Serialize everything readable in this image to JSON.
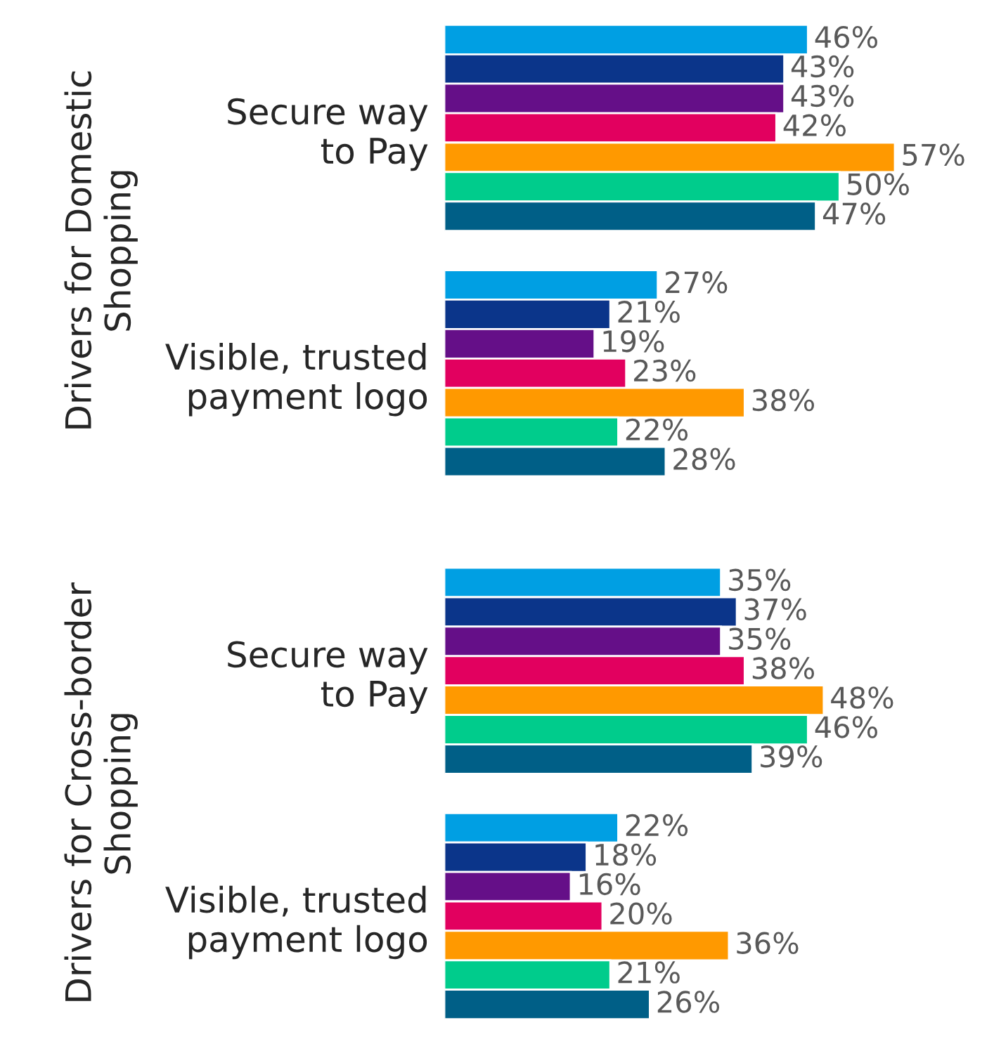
{
  "chart_data": [
    {
      "type": "bar",
      "orientation": "horizontal",
      "ylabel": "Drivers for Domestic\nShopping",
      "categories": [
        "Secure way\nto Pay",
        "Visible, trusted\npayment logo"
      ],
      "tick_labels": "y",
      "grid": false,
      "legend": false,
      "series": [
        {
          "color": "#009fe3",
          "values": [
            46,
            27
          ],
          "value_labels": [
            "46%",
            "27%"
          ]
        },
        {
          "color": "#0b358a",
          "values": [
            43,
            21
          ],
          "value_labels": [
            "43%",
            "21%"
          ]
        },
        {
          "color": "#650f88",
          "values": [
            43,
            19
          ],
          "value_labels": [
            "43%",
            "19%"
          ]
        },
        {
          "color": "#e2005f",
          "values": [
            42,
            23
          ],
          "value_labels": [
            "42%",
            "23%"
          ]
        },
        {
          "color": "#ff9900",
          "values": [
            57,
            38
          ],
          "value_labels": [
            "57%",
            "38%"
          ]
        },
        {
          "color": "#00cc8c",
          "values": [
            50,
            22
          ],
          "value_labels": [
            "50%",
            "22%"
          ]
        },
        {
          "color": "#005f87",
          "values": [
            47,
            28
          ],
          "value_labels": [
            "47%",
            "28%"
          ]
        }
      ]
    },
    {
      "type": "bar",
      "orientation": "horizontal",
      "ylabel": "Drivers for Cross-border\nShopping",
      "categories": [
        "Secure way\nto Pay",
        "Visible, trusted\npayment logo"
      ],
      "tick_labels": "y",
      "grid": false,
      "legend": false,
      "series": [
        {
          "color": "#009fe3",
          "values": [
            35,
            22
          ],
          "value_labels": [
            "35%",
            "22%"
          ]
        },
        {
          "color": "#0b358a",
          "values": [
            37,
            18
          ],
          "value_labels": [
            "37%",
            "18%"
          ]
        },
        {
          "color": "#650f88",
          "values": [
            35,
            16
          ],
          "value_labels": [
            "35%",
            "16%"
          ]
        },
        {
          "color": "#e2005f",
          "values": [
            38,
            20
          ],
          "value_labels": [
            "38%",
            "20%"
          ]
        },
        {
          "color": "#ff9900",
          "values": [
            48,
            36
          ],
          "value_labels": [
            "48%",
            "36%"
          ]
        },
        {
          "color": "#00cc8c",
          "values": [
            46,
            21
          ],
          "value_labels": [
            "46%",
            "21%"
          ]
        },
        {
          "color": "#005f87",
          "values": [
            39,
            26
          ],
          "value_labels": [
            "39%",
            "26%"
          ]
        }
      ]
    }
  ]
}
